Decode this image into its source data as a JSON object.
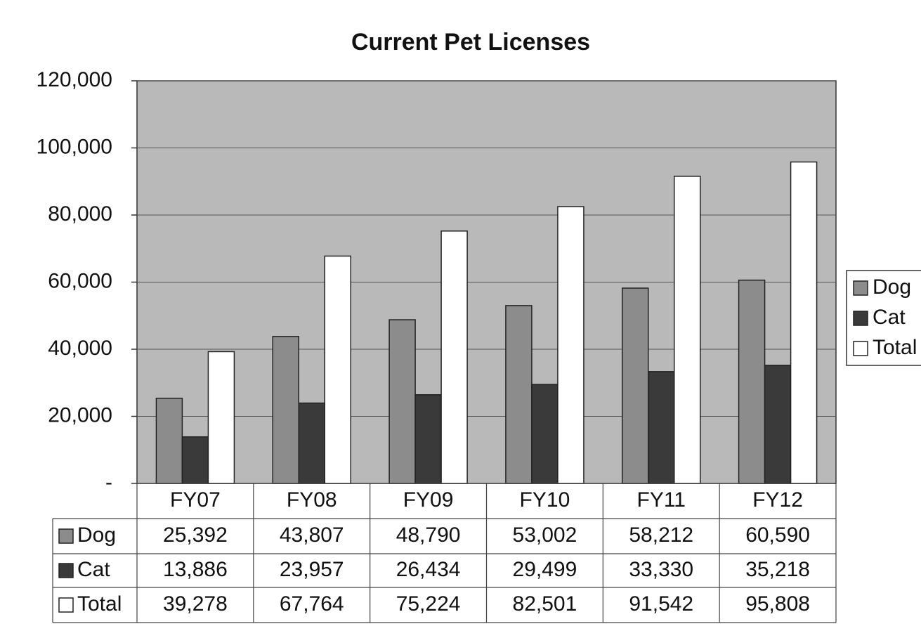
{
  "chart_data": {
    "type": "bar",
    "title": "Current Pet Licenses",
    "categories": [
      "FY07",
      "FY08",
      "FY09",
      "FY10",
      "FY11",
      "FY12"
    ],
    "series": [
      {
        "name": "Dog",
        "color": "#8c8c8c",
        "values": [
          25392,
          43807,
          48790,
          53002,
          58212,
          60590
        ],
        "value_labels": [
          "25,392",
          "43,807",
          "48,790",
          "53,002",
          "58,212",
          "60,590"
        ]
      },
      {
        "name": "Cat",
        "color": "#3a3a3a",
        "values": [
          13886,
          23957,
          26434,
          29499,
          33330,
          35218
        ],
        "value_labels": [
          "13,886",
          "23,957",
          "26,434",
          "29,499",
          "33,330",
          "35,218"
        ]
      },
      {
        "name": "Total",
        "color": "#ffffff",
        "values": [
          39278,
          67764,
          75224,
          82501,
          91542,
          95808
        ],
        "value_labels": [
          "39,278",
          "67,764",
          "75,224",
          "82,501",
          "91,542",
          "95,808"
        ]
      }
    ],
    "ylim": [
      0,
      120000
    ],
    "yticks": [
      {
        "value": 0,
        "label": "-"
      },
      {
        "value": 20000,
        "label": "20,000"
      },
      {
        "value": 40000,
        "label": "40,000"
      },
      {
        "value": 60000,
        "label": "60,000"
      },
      {
        "value": 80000,
        "label": "80,000"
      },
      {
        "value": 100000,
        "label": "100,000"
      },
      {
        "value": 120000,
        "label": "120,000"
      }
    ],
    "grid": true,
    "legend": "right"
  }
}
